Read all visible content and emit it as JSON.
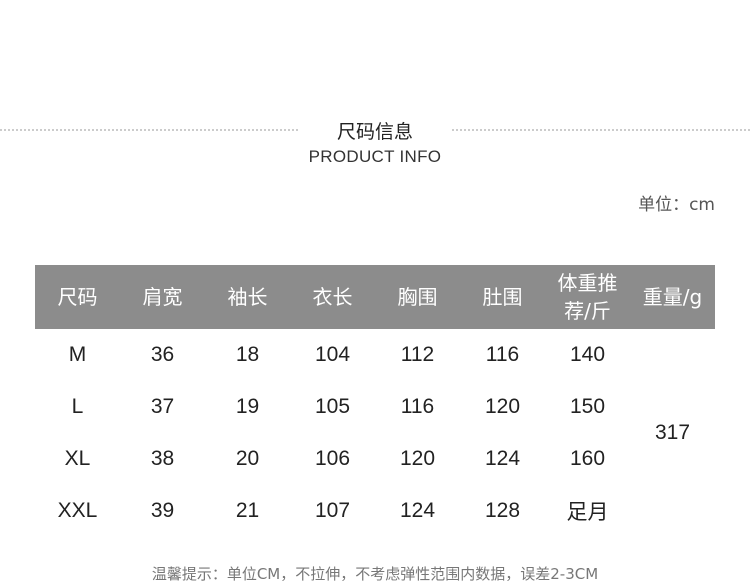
{
  "title_cn": "尺码信息",
  "title_en": "PRODUCT INFO",
  "unit": "单位：cm",
  "table": {
    "headers": [
      "尺码",
      "肩宽",
      "袖长",
      "衣长",
      "胸围",
      "肚围",
      "体重推荐/斤",
      "重量/g"
    ],
    "rows": [
      [
        "M",
        "36",
        "18",
        "104",
        "112",
        "116",
        "140"
      ],
      [
        "L",
        "37",
        "19",
        "105",
        "116",
        "120",
        "150"
      ],
      [
        "XL",
        "38",
        "20",
        "106",
        "120",
        "124",
        "160"
      ],
      [
        "XXL",
        "39",
        "21",
        "107",
        "124",
        "128",
        "足月"
      ]
    ],
    "weight": "317"
  },
  "note": "温馨提示：单位CM，不拉伸，不考虑弹性范围内数据，误差2-3CM",
  "colors": {
    "header_bg": "#8c8c8c"
  }
}
